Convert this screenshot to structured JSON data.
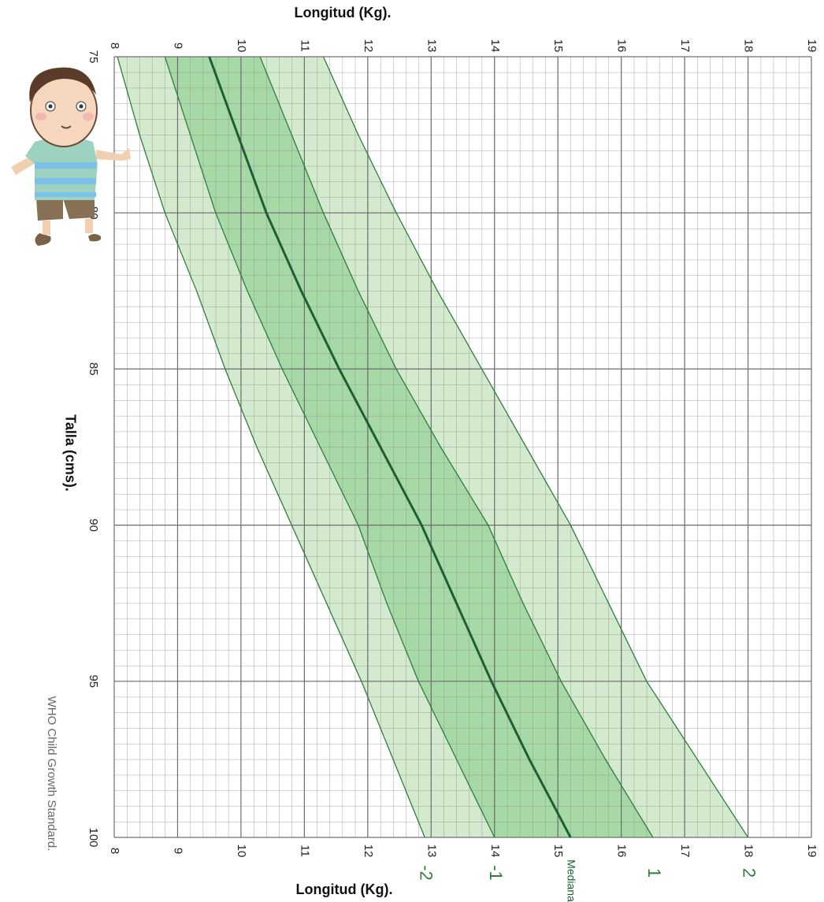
{
  "chart_data": {
    "type": "line",
    "title_top": "Longitud (Kg).",
    "title_bottom": "Longitud (Kg).",
    "y_axis_title": "Talla (cms).",
    "source": "WHO Child Growth Standard.",
    "x": [
      75,
      77.5,
      80,
      82.5,
      85,
      87.5,
      90,
      92.5,
      95,
      97.5,
      100
    ],
    "series": [
      {
        "name": "-2",
        "color": "#2f7d3c",
        "values": [
          8.05,
          8.4,
          8.8,
          9.3,
          9.75,
          10.25,
          10.8,
          11.35,
          11.9,
          12.4,
          12.9
        ]
      },
      {
        "name": "-1",
        "color": "#2f7d3c",
        "values": [
          8.8,
          9.2,
          9.6,
          10.1,
          10.65,
          11.25,
          11.85,
          12.3,
          12.8,
          13.4,
          14.0
        ]
      },
      {
        "name": "Mediana",
        "color": "#1d5e35",
        "values": [
          9.5,
          9.95,
          10.4,
          10.95,
          11.55,
          12.2,
          12.85,
          13.4,
          13.95,
          14.55,
          15.2
        ]
      },
      {
        "name": "1",
        "color": "#2f7d3c",
        "values": [
          10.3,
          10.8,
          11.3,
          11.85,
          12.45,
          13.15,
          13.9,
          14.45,
          15.05,
          15.75,
          16.5
        ]
      },
      {
        "name": "2",
        "color": "#2f7d3c",
        "values": [
          11.3,
          11.85,
          12.45,
          13.1,
          13.8,
          14.5,
          15.2,
          15.8,
          16.4,
          17.2,
          18.0
        ]
      }
    ],
    "outer_band_color": "#d3eacf",
    "inner_band_color": "#a6d9a6",
    "xlim": [
      75,
      100
    ],
    "xticks": [
      75,
      80,
      85,
      90,
      95,
      100
    ],
    "ylim": [
      8,
      19
    ],
    "yticks": [
      8,
      9,
      10,
      11,
      12,
      13,
      14,
      15,
      16,
      17,
      18,
      19
    ],
    "grid": true
  }
}
